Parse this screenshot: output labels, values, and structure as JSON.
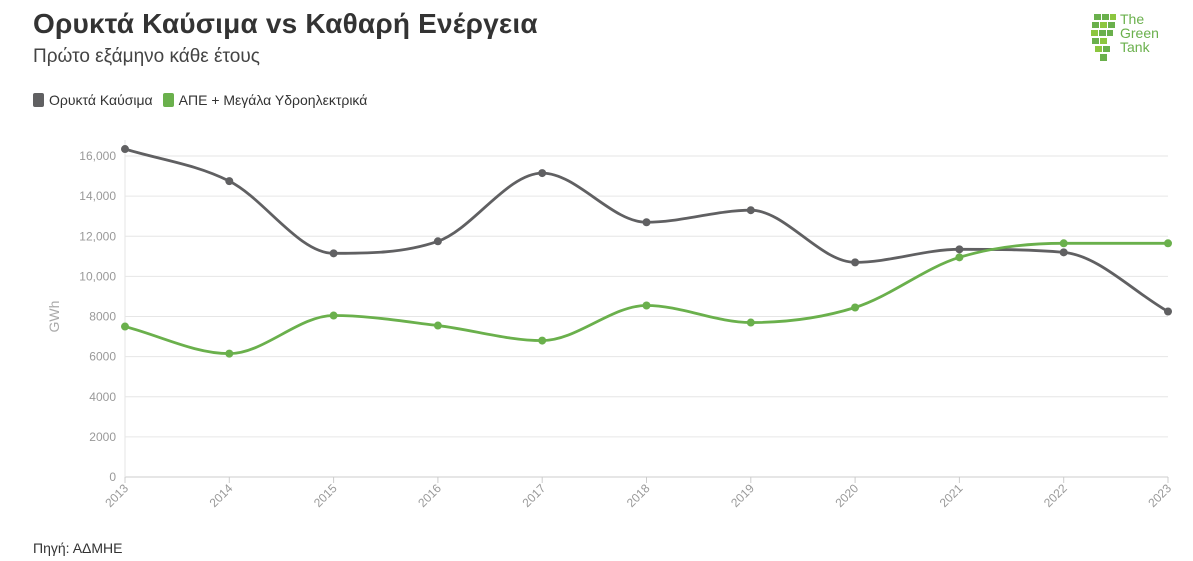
{
  "chart_data": {
    "type": "line",
    "title": "Ορυκτά Καύσιμα vs Καθαρή Ενέργεια",
    "subtitle": "Πρώτο εξάμηνο κάθε έτους",
    "ylabel": "GWh",
    "xlabel": "",
    "source": "Πηγή: ΑΔΜΗΕ",
    "x": [
      "2013",
      "2014",
      "2015",
      "2016",
      "2017",
      "2018",
      "2019",
      "2020",
      "2021",
      "2022",
      "2023"
    ],
    "y_ticks": [
      "0",
      "2000",
      "4000",
      "6000",
      "8000",
      "10,000",
      "12,000",
      "14,000",
      "16,000"
    ],
    "ylim": [
      0,
      16800
    ],
    "grid": true,
    "legend_position": "top-left",
    "series": [
      {
        "name": "Ορυκτά Καύσιμα",
        "color": "#606062",
        "values": [
          16350,
          14750,
          11150,
          11750,
          15150,
          12700,
          13300,
          10700,
          11350,
          11200,
          8250
        ]
      },
      {
        "name": "ΑΠΕ + Μεγάλα Υδροηλεκτρικά",
        "color": "#6ab04c",
        "values": [
          7500,
          6150,
          8050,
          7550,
          6800,
          8550,
          7700,
          8450,
          10950,
          11650,
          11650
        ]
      }
    ]
  },
  "logo": {
    "lines": [
      "The",
      "Green",
      "Tank"
    ]
  }
}
